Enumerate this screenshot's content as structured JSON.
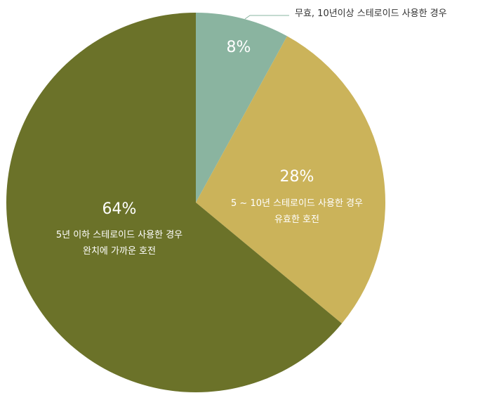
{
  "chart_data": {
    "type": "pie",
    "categories": [
      "무효, 10년이상 스테로이드 사용한 경우",
      "5 ~ 10년 스테로이드 사용한 경우\n유효한 호전",
      "5년 이하 스테로이드 사용한 경우\n완치에 가까운 호전"
    ],
    "values": [
      8,
      28,
      64
    ],
    "value_labels": [
      "8%",
      "28%",
      "64%"
    ],
    "colors": [
      "#8ab4a0",
      "#cbb35a",
      "#6b7229"
    ]
  }
}
